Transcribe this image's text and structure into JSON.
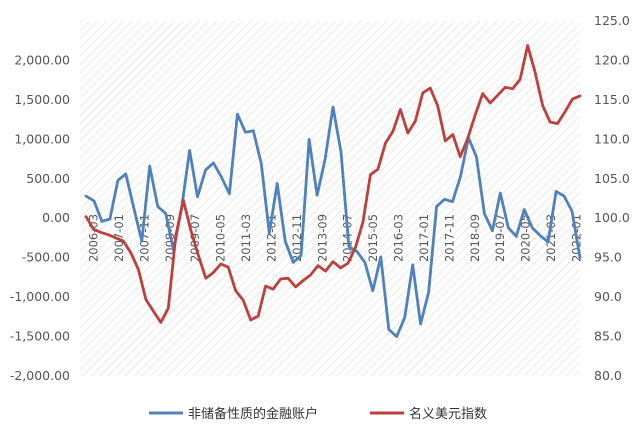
{
  "chart_data": {
    "type": "line",
    "title": "",
    "grid": false,
    "background": "diagonal-hatch",
    "legend_position": "bottom-center",
    "colors": {
      "series1": "#4e81bd",
      "series2": "#bf3f3c",
      "hatch": "#d6d6d6",
      "tick_text": "#555555"
    },
    "left_axis": {
      "ylim": [
        -2000,
        2500
      ],
      "ticks": [
        "2,000.00",
        "1,500.00",
        "1,000.00",
        "500.00",
        "0.00",
        "-500.00",
        "-1,000.00",
        "-1,500.00",
        "-2,000.00"
      ],
      "tick_values": [
        2000,
        1500,
        1000,
        500,
        0,
        -500,
        -1000,
        -1500,
        -2000
      ]
    },
    "right_axis": {
      "ylim": [
        80,
        125
      ],
      "ticks": [
        "125.0",
        "120.0",
        "115.0",
        "110.0",
        "105.0",
        "100.0",
        "95.0",
        "90.0",
        "85.0",
        "80.0"
      ],
      "tick_values": [
        125,
        120,
        115,
        110,
        105,
        100,
        95,
        90,
        85,
        80
      ]
    },
    "x_tick_labels": [
      "2006-03",
      "2007-01",
      "2007-11",
      "2008-09",
      "2009-07",
      "2010-05",
      "2011-03",
      "2012-01",
      "2012-11",
      "2013-09",
      "2014-07",
      "2015-05",
      "2016-03",
      "2017-01",
      "2017-11",
      "2018-09",
      "2019-07",
      "2020-05",
      "2021-03",
      "2022-01"
    ],
    "series": [
      {
        "name": "非储备性质的金融账户",
        "axis": "left",
        "values": [
          280,
          220,
          -40,
          -10,
          480,
          560,
          130,
          -290,
          660,
          150,
          60,
          -410,
          130,
          860,
          270,
          610,
          700,
          520,
          310,
          1320,
          1090,
          1110,
          690,
          -190,
          440,
          -290,
          -560,
          -470,
          1000,
          290,
          740,
          1410,
          840,
          -360,
          -420,
          -560,
          -920,
          -490,
          -1410,
          -1500,
          -1260,
          -590,
          -1340,
          -940,
          150,
          240,
          210,
          530,
          1020,
          780,
          60,
          -160,
          320,
          -120,
          -230,
          110,
          -120,
          -220,
          -300,
          340,
          280,
          90,
          -500
        ]
      },
      {
        "name": "名义美元指数",
        "axis": "right",
        "values": [
          100.2,
          98.6,
          98.2,
          97.9,
          97.5,
          97.1,
          95.6,
          93.5,
          89.7,
          88.2,
          86.8,
          88.6,
          97.8,
          102.3,
          98.5,
          95.3,
          92.4,
          93.1,
          94.2,
          93.8,
          90.8,
          89.6,
          87.1,
          87.6,
          91.4,
          91.0,
          92.3,
          92.4,
          91.3,
          92.1,
          92.8,
          94.0,
          93.3,
          94.5,
          93.7,
          94.3,
          96.3,
          99.5,
          105.5,
          106.2,
          109.5,
          111.0,
          113.8,
          110.8,
          112.3,
          115.9,
          116.5,
          114.2,
          109.8,
          110.6,
          107.8,
          110.1,
          113.1,
          115.8,
          114.6,
          115.6,
          116.6,
          116.4,
          117.6,
          121.9,
          118.5,
          114.3,
          112.2,
          112.0,
          113.5,
          115.1,
          115.5
        ]
      }
    ]
  },
  "legend": {
    "series1_label": "非储备性质的金融账户",
    "series2_label": "名义美元指数"
  }
}
